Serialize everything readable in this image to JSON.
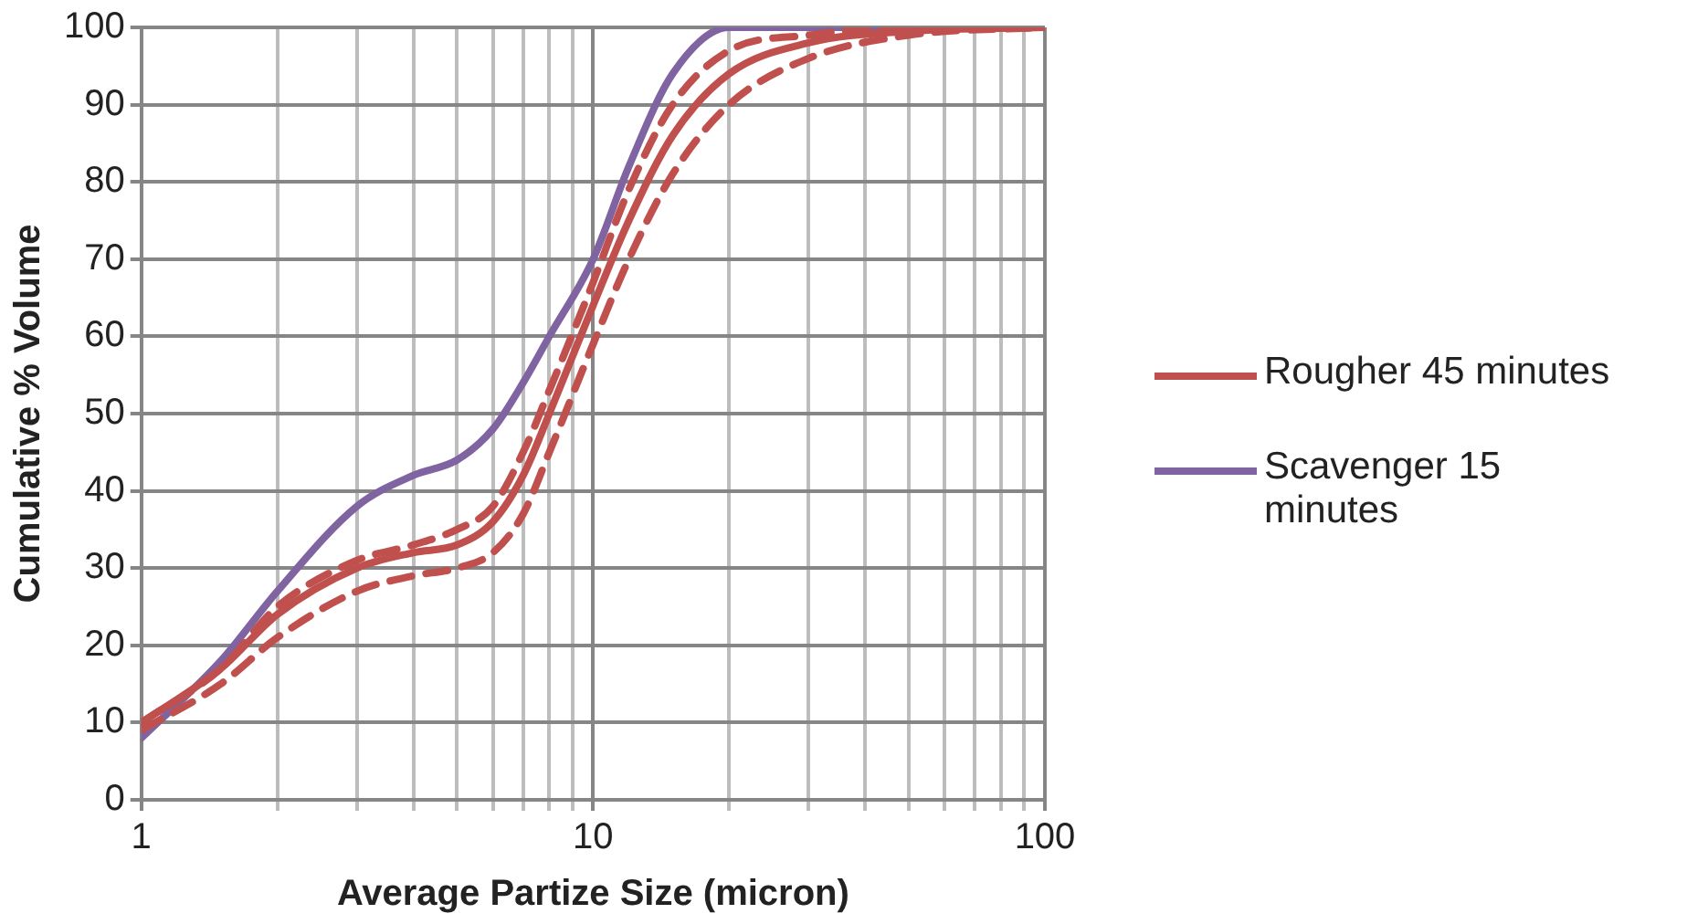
{
  "chart_data": {
    "type": "line",
    "xlabel": "Average Partize Size (micron)",
    "ylabel": "Cumulative % Volume",
    "log": "x",
    "grid": true,
    "legend": "right",
    "marker": "none",
    "x": [
      1,
      1.5,
      2,
      3,
      4,
      5,
      6,
      7,
      8,
      10,
      12,
      15,
      20,
      30,
      50,
      100
    ],
    "xlim": [
      1,
      100
    ],
    "xticks": [
      1,
      {
        "value": 2,
        "label": null
      },
      {
        "value": 3,
        "label": null
      },
      {
        "value": 4,
        "label": null
      },
      {
        "value": 5,
        "label": null
      },
      {
        "value": 6,
        "label": null
      },
      {
        "value": 7,
        "label": null
      },
      {
        "value": 8,
        "label": null
      },
      {
        "value": 9,
        "label": null
      },
      10,
      {
        "value": 20,
        "label": null
      },
      {
        "value": 30,
        "label": null
      },
      {
        "value": 40,
        "label": null
      },
      {
        "value": 50,
        "label": null
      },
      {
        "value": 60,
        "label": null
      },
      {
        "value": 70,
        "label": null
      },
      {
        "value": 80,
        "label": null
      },
      {
        "value": 90,
        "label": null
      },
      100
    ],
    "ylim": [
      0,
      100
    ],
    "yticks": [
      0,
      10,
      20,
      30,
      40,
      50,
      60,
      70,
      80,
      90,
      100
    ],
    "series": [
      {
        "color": "#c0504d",
        "line_style": "dashed",
        "values": [
          10,
          17,
          25,
          31,
          33,
          35,
          38,
          45,
          53,
          67,
          79,
          90,
          97,
          99,
          100,
          100
        ]
      },
      {
        "color": "#c0504d",
        "line_style": "dashed",
        "values": [
          9,
          15,
          21,
          27,
          29,
          30,
          32,
          37,
          45,
          59,
          70,
          81,
          90,
          96,
          99,
          100
        ]
      },
      {
        "name": "Rougher 45 minutes",
        "color": "#c0504d",
        "line_style": "solid",
        "values": [
          10,
          17,
          24,
          30,
          32,
          33,
          36,
          42,
          50,
          64,
          75,
          86,
          94,
          98,
          99.5,
          100
        ]
      },
      {
        "name": "Scavenger 15 minutes",
        "color": "#8064a2",
        "line_style": "solid",
        "values": [
          8,
          18,
          27,
          38,
          42,
          44,
          48,
          54,
          60,
          70,
          82,
          94,
          100,
          100,
          100,
          100
        ]
      }
    ]
  }
}
